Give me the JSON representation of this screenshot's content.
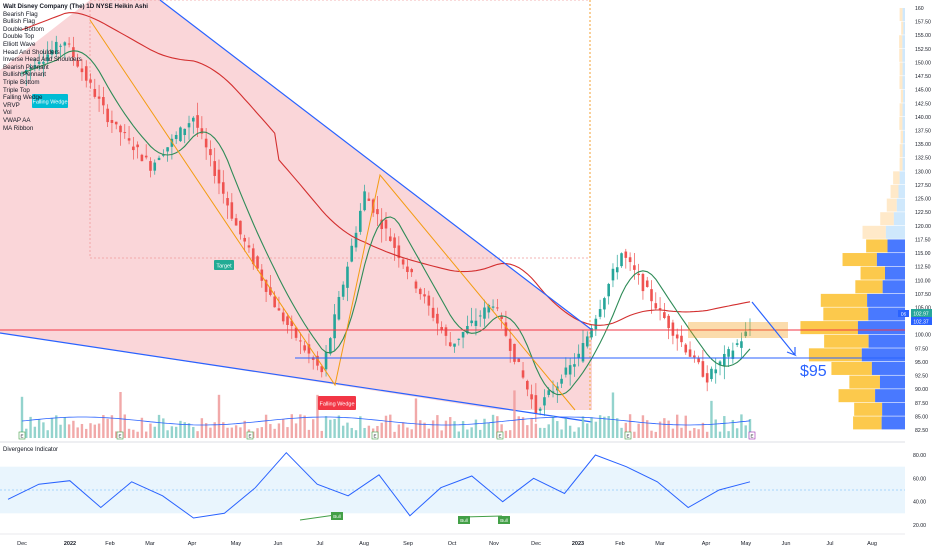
{
  "chart_data": {
    "type": "line",
    "title": "Walt Disney Company (The), 1D, NYSE, Heikin Ashi",
    "legend_items": [
      "Walt Disney Company (The) 1D NYSE Heikin Ashi",
      "Bearish Flag",
      "Bullish Flag",
      "Double Bottom",
      "Double Top",
      "Elliott Wave",
      "Head And Shoulders",
      "Inverse Head And Shoulders",
      "Bearish Pennant",
      "Bullish Pennant",
      "Triple Bottom",
      "Triple Top",
      "Falling Wedge",
      "VRVP",
      "Vol",
      "VWAP AA",
      "MA Ribbon"
    ],
    "x_tick_labels": [
      "Dec",
      "2022",
      "Feb",
      "Mar",
      "Apr",
      "May",
      "Jun",
      "Jul",
      "Aug",
      "Sep",
      "Oct",
      "Nov",
      "Dec",
      "2023",
      "Feb",
      "Mar",
      "Apr",
      "May",
      "Jun",
      "Jul",
      "Aug"
    ],
    "y_tick_labels": [
      "160",
      "157.50",
      "155.00",
      "152.50",
      "150.00",
      "147.50",
      "145.00",
      "142.50",
      "140.00",
      "137.50",
      "135.00",
      "132.50",
      "130.00",
      "127.50",
      "125.00",
      "122.50",
      "120.00",
      "117.50",
      "115.00",
      "112.50",
      "110.00",
      "107.50",
      "105.00",
      "100.00",
      "97.50",
      "95.00",
      "92.50",
      "90.00",
      "87.50",
      "85.00",
      "82.50"
    ],
    "ylim": [
      82.5,
      160
    ],
    "price_series": {
      "name": "",
      "x": [
        "Dec",
        "2022",
        "Feb",
        "Mar",
        "Apr",
        "May",
        "Jun",
        "Jul",
        "Aug",
        "Sep",
        "Oct",
        "Nov",
        "Dec",
        "2023",
        "Feb",
        "Mar",
        "Apr",
        "May"
      ],
      "values": [
        148,
        154,
        140,
        131,
        140,
        120,
        104,
        93,
        126,
        112,
        98,
        106,
        86,
        96,
        115,
        103,
        92,
        101
      ]
    },
    "current_price_labels": [
      "102.97",
      "102.37"
    ],
    "horizontal_levels": [
      {
        "value": 100.0,
        "color": "#f23645"
      },
      {
        "value": 95.0,
        "color": "#2962ff"
      }
    ],
    "annotations": [
      {
        "text": "Target",
        "color": "#22ab94"
      },
      {
        "text": "Falling Wedge",
        "color": "#f23645"
      },
      {
        "text": "Falling Wedge",
        "color": "#00bcd4"
      },
      {
        "text": "$95",
        "color": "#2962ff"
      }
    ],
    "volume_markers": [
      "E",
      "E",
      "E",
      "E",
      "E",
      "E",
      "E",
      "E"
    ],
    "volume_last_label": "E",
    "oscillator": {
      "title": "Divergence Indicator",
      "ylim": [
        20,
        80
      ],
      "y_tick_labels": [
        "80.00",
        "60.00",
        "40.00",
        "20.00"
      ],
      "band": [
        30,
        70
      ],
      "values": [
        42,
        55,
        58,
        35,
        57,
        45,
        26,
        30,
        52,
        82,
        55,
        45,
        63,
        28,
        52,
        62,
        40,
        60,
        47,
        80,
        70,
        57,
        35,
        50,
        57
      ],
      "divergence_labels": [
        "Bull",
        "Bull",
        "Bull"
      ]
    },
    "colors": {
      "price_up": "#26a69a",
      "price_down": "#ef5350",
      "wedge_fill": "#f8c8cc",
      "long_ma": "#d32f2f",
      "short_ma": "#2e8b57",
      "trendline": "#2962ff",
      "zigzag": "#f39c12",
      "oscillator_line": "#2962ff"
    }
  }
}
